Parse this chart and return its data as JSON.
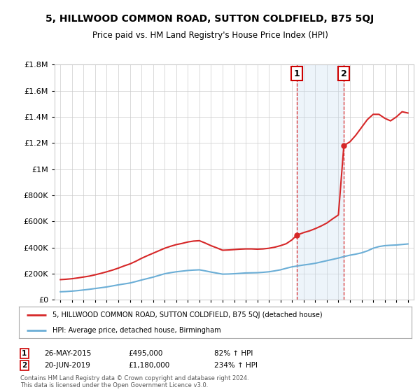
{
  "title": "5, HILLWOOD COMMON ROAD, SUTTON COLDFIELD, B75 5QJ",
  "subtitle": "Price paid vs. HM Land Registry's House Price Index (HPI)",
  "legend_line1": "5, HILLWOOD COMMON ROAD, SUTTON COLDFIELD, B75 5QJ (detached house)",
  "legend_line2": "HPI: Average price, detached house, Birmingham",
  "sale1_date": "26-MAY-2015",
  "sale1_price": "£495,000",
  "sale1_hpi": "82% ↑ HPI",
  "sale1_year": 2015.4,
  "sale1_value": 495000,
  "sale2_date": "20-JUN-2019",
  "sale2_price": "£1,180,000",
  "sale2_hpi": "234% ↑ HPI",
  "sale2_year": 2019.47,
  "sale2_value": 1180000,
  "footer": "Contains HM Land Registry data © Crown copyright and database right 2024.\nThis data is licensed under the Open Government Licence v3.0.",
  "ylim": [
    0,
    1800000
  ],
  "xlim_start": 1994.5,
  "xlim_end": 2025.5,
  "hpi_color": "#6baed6",
  "property_color": "#d62728",
  "vline_color": "#d62728",
  "shade_color": "#c6dbef",
  "background_color": "#ffffff",
  "grid_color": "#cccccc",
  "hpi_years": [
    1995,
    1995.5,
    1996,
    1996.5,
    1997,
    1997.5,
    1998,
    1998.5,
    1999,
    1999.5,
    2000,
    2000.5,
    2001,
    2001.5,
    2002,
    2002.5,
    2003,
    2003.5,
    2004,
    2004.5,
    2005,
    2005.5,
    2006,
    2006.5,
    2007,
    2007.5,
    2008,
    2008.5,
    2009,
    2009.5,
    2010,
    2010.5,
    2011,
    2011.5,
    2012,
    2012.5,
    2013,
    2013.5,
    2014,
    2014.5,
    2015,
    2015.5,
    2016,
    2016.5,
    2017,
    2017.5,
    2018,
    2018.5,
    2019,
    2019.5,
    2020,
    2020.5,
    2021,
    2021.5,
    2022,
    2022.5,
    2023,
    2023.5,
    2024,
    2024.5,
    2025
  ],
  "hpi_values": [
    62000,
    64000,
    67000,
    71000,
    76000,
    81000,
    87000,
    93000,
    99000,
    107000,
    115000,
    122000,
    129000,
    140000,
    152000,
    163000,
    174000,
    187000,
    200000,
    208000,
    215000,
    220000,
    225000,
    228000,
    230000,
    222000,
    213000,
    205000,
    197000,
    198000,
    200000,
    203000,
    206000,
    207000,
    208000,
    211000,
    215000,
    222000,
    230000,
    242000,
    253000,
    260000,
    267000,
    273000,
    280000,
    290000,
    300000,
    310000,
    320000,
    332000,
    342000,
    350000,
    360000,
    375000,
    395000,
    408000,
    415000,
    418000,
    420000,
    424000,
    428000
  ],
  "prop_years": [
    1995,
    1995.5,
    1996,
    1996.5,
    1997,
    1997.5,
    1998,
    1998.5,
    1999,
    1999.5,
    2000,
    2000.5,
    2001,
    2001.5,
    2002,
    2002.5,
    2003,
    2003.5,
    2004,
    2004.5,
    2005,
    2005.5,
    2006,
    2006.5,
    2007,
    2007.5,
    2008,
    2008.5,
    2009,
    2009.5,
    2010,
    2010.5,
    2011,
    2011.5,
    2012,
    2012.5,
    2013,
    2013.5,
    2014,
    2014.5,
    2015,
    2015.4,
    2016,
    2016.5,
    2017,
    2017.5,
    2018,
    2018.5,
    2019,
    2019.47,
    2020,
    2020.5,
    2021,
    2021.5,
    2022,
    2022.5,
    2023,
    2023.5,
    2024,
    2024.5,
    2025
  ],
  "prop_values": [
    155000,
    158000,
    162000,
    168000,
    175000,
    182000,
    192000,
    203000,
    215000,
    228000,
    243000,
    260000,
    275000,
    295000,
    318000,
    338000,
    357000,
    376000,
    395000,
    410000,
    423000,
    432000,
    443000,
    450000,
    453000,
    435000,
    415000,
    398000,
    380000,
    382000,
    385000,
    388000,
    390000,
    390000,
    388000,
    390000,
    395000,
    403000,
    415000,
    430000,
    460000,
    495000,
    515000,
    528000,
    545000,
    565000,
    588000,
    620000,
    650000,
    1180000,
    1210000,
    1260000,
    1320000,
    1380000,
    1420000,
    1420000,
    1390000,
    1370000,
    1400000,
    1440000,
    1430000
  ]
}
